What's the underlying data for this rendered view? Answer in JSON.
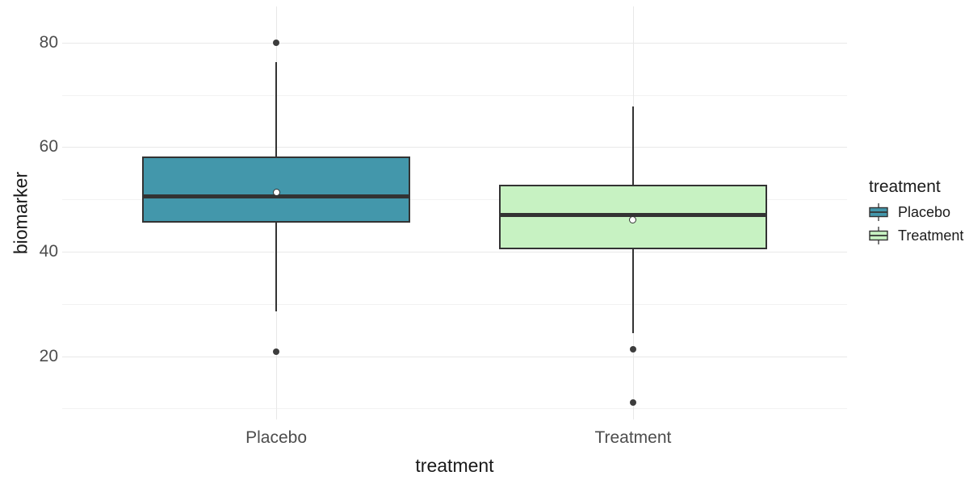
{
  "figure": {
    "background": "#ffffff"
  },
  "y_axis": {
    "title": "biomarker",
    "ticks": [
      20,
      40,
      60,
      80
    ],
    "tick_labels": [
      "20",
      "40",
      "60",
      "80"
    ],
    "minor_ticks": [
      10,
      30,
      50,
      70
    ]
  },
  "x_axis": {
    "title": "treatment",
    "categories": [
      "Placebo",
      "Treatment"
    ]
  },
  "legend": {
    "title": "treatment",
    "items": [
      {
        "label": "Placebo",
        "fill": "#4397ab"
      },
      {
        "label": "Treatment",
        "fill": "#c7f2c2"
      }
    ]
  },
  "chart_data": {
    "type": "boxplot",
    "title": "",
    "xlabel": "treatment",
    "ylabel": "biomarker",
    "categories": [
      "Placebo",
      "Treatment"
    ],
    "series": [
      {
        "name": "Placebo",
        "fill": "#4397ab",
        "q1": 45.5,
        "median": 50.6,
        "q3": 58.2,
        "whisker_low": 28.5,
        "whisker_high": 76.3,
        "mean": 51.3,
        "outliers": [
          80,
          20.8
        ]
      },
      {
        "name": "Treatment",
        "fill": "#c7f2c2",
        "q1": 40.5,
        "median": 47,
        "q3": 52.8,
        "whisker_low": 24.4,
        "whisker_high": 67.8,
        "mean": 46.1,
        "outliers": [
          21.4,
          11.1
        ]
      }
    ],
    "ylim": [
      7.9,
      86.9
    ],
    "yticks": [
      20,
      40,
      60,
      80
    ],
    "grid": true,
    "legend_position": "right"
  },
  "colors": {
    "stroke": "#333333",
    "outlier": "#3d3d3d",
    "mean_fill": "#ffffff",
    "grid_major": "#e8e8e8",
    "grid_minor": "#f2f2f2",
    "tick_text": "#4d4d4d",
    "title_text": "#1a1a1a"
  }
}
